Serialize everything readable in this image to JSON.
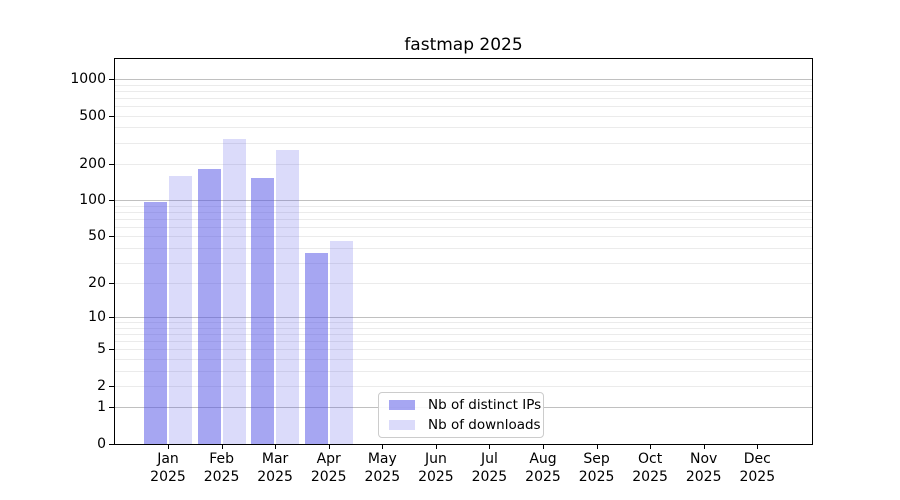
{
  "title": "fastmap 2025",
  "chart_data": {
    "type": "bar",
    "title": "fastmap 2025",
    "categories": [
      "Jan 2025",
      "Feb 2025",
      "Mar 2025",
      "Apr 2025",
      "May 2025",
      "Jun 2025",
      "Jul 2025",
      "Aug 2025",
      "Sep 2025",
      "Oct 2025",
      "Nov 2025",
      "Dec 2025"
    ],
    "series": [
      {
        "name": "Nb of distinct IPs",
        "color_hex": "#4d4de6",
        "alpha": 0.5,
        "values": [
          96,
          180,
          152,
          36,
          null,
          null,
          null,
          null,
          null,
          null,
          null,
          null
        ]
      },
      {
        "name": "Nb of downloads",
        "color_hex": "#4d4de6",
        "alpha": 0.2,
        "values": [
          158,
          320,
          262,
          46,
          null,
          null,
          null,
          null,
          null,
          null,
          null,
          null
        ]
      }
    ],
    "xlabel": "",
    "ylabel": "",
    "y_scale": "log1p",
    "ylim": [
      0,
      1460
    ],
    "y_ticks": [
      0,
      1,
      2,
      5,
      10,
      20,
      50,
      100,
      200,
      500,
      1000
    ],
    "major_gridline_values": [
      1,
      10,
      100,
      1000
    ],
    "minor_gridline_subs": [
      2,
      3,
      4,
      5,
      6,
      7,
      8,
      9
    ],
    "minor_gridline_decades": [
      1,
      10,
      100
    ],
    "grid": true,
    "legend_position": "lower center"
  },
  "colors": {
    "background": "#ffffff",
    "axis": "#000000",
    "major_grid": "#c0c0c0",
    "minor_grid": "#ebebeb",
    "legend_border": "#cccccc",
    "bar_distinct_ips": "#a6a6f1",
    "bar_downloads": "#dbdbf6"
  }
}
